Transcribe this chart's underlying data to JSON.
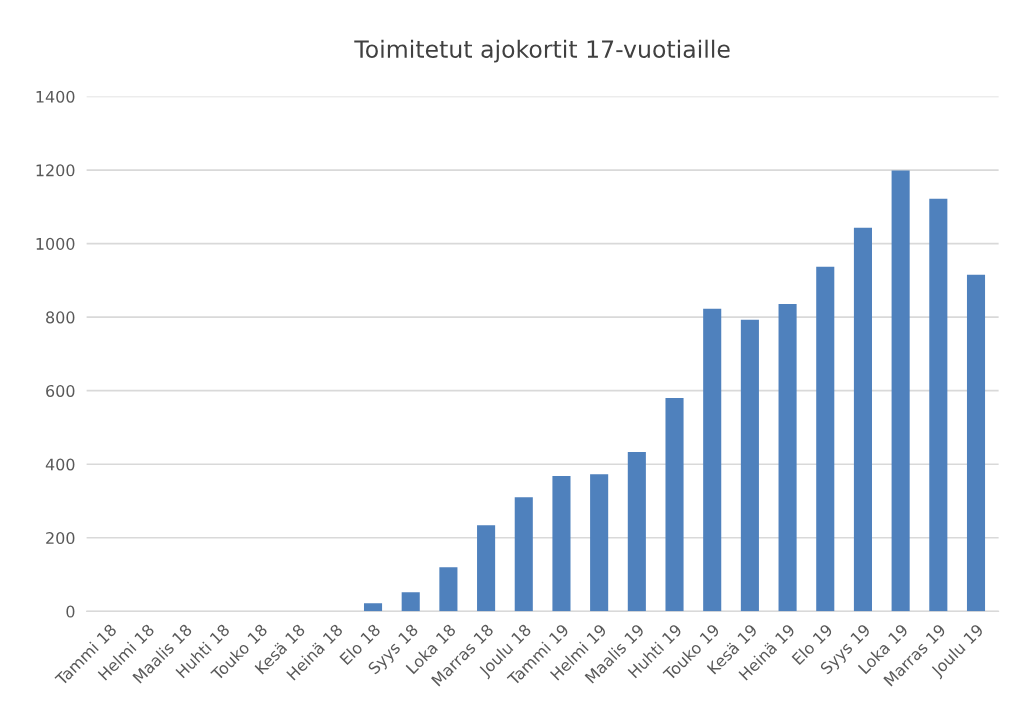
{
  "chart_data": {
    "type": "bar",
    "title": "Toimitetut ajokortit 17-vuotiaille",
    "categories": [
      "Tammi 18",
      "Helmi 18",
      "Maalis 18",
      "Huhti 18",
      "Touko 18",
      "Kesä 18",
      "Heinä 18",
      "Elo 18",
      "Syys 18",
      "Loka 18",
      "Marras 18",
      "Joulu 18",
      "Tammi 19",
      "Helmi 19",
      "Maalis 19",
      "Huhti 19",
      "Touko 19",
      "Kesä 19",
      "Heinä 19",
      "Elo 19",
      "Syys 19",
      "Loka 19",
      "Marras 19",
      "Joulu 19"
    ],
    "values": [
      0,
      0,
      0,
      0,
      0,
      0,
      0,
      22,
      52,
      120,
      234,
      310,
      368,
      373,
      433,
      580,
      823,
      793,
      836,
      937,
      1043,
      1199,
      1122,
      915
    ],
    "color": "#4f81bd",
    "ylim": [
      0,
      1400
    ],
    "yticks": [
      0,
      200,
      400,
      600,
      800,
      1000,
      1200,
      1400
    ],
    "grid": "y"
  }
}
